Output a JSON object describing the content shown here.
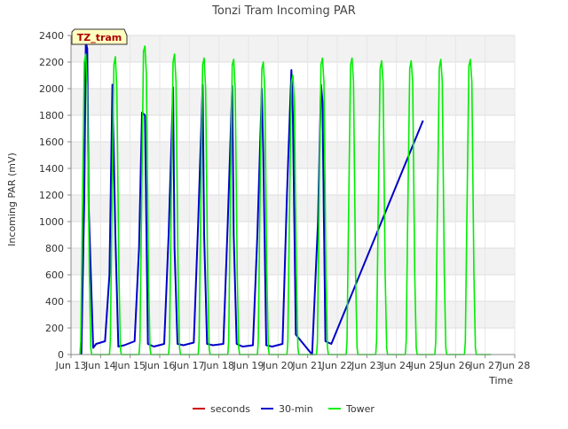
{
  "chart_data": {
    "type": "line",
    "title": "Tonzi Tram Incoming PAR",
    "xlabel": "Time",
    "ylabel": "Incoming PAR (mV)",
    "ylim": [
      0,
      2400
    ],
    "xlim": [
      13,
      28
    ],
    "yticks": [
      0,
      200,
      400,
      600,
      800,
      1000,
      1200,
      1400,
      1600,
      1800,
      2000,
      2200,
      2400
    ],
    "xticks": [
      {
        "v": 13,
        "label": "Jun 13"
      },
      {
        "v": 14,
        "label": "Jun 14"
      },
      {
        "v": 15,
        "label": "Jun 15"
      },
      {
        "v": 16,
        "label": "Jun 16"
      },
      {
        "v": 17,
        "label": "Jun 17"
      },
      {
        "v": 18,
        "label": "Jun 18"
      },
      {
        "v": 19,
        "label": "Jun 19"
      },
      {
        "v": 20,
        "label": "Jun 20"
      },
      {
        "v": 21,
        "label": "Jun 21"
      },
      {
        "v": 22,
        "label": "Jun 22"
      },
      {
        "v": 23,
        "label": "Jun 23"
      },
      {
        "v": 24,
        "label": "Jun 24"
      },
      {
        "v": 25,
        "label": "Jun 25"
      },
      {
        "v": 26,
        "label": "Jun 26"
      },
      {
        "v": 27,
        "label": "Jun 27"
      },
      {
        "v": 28,
        "label": "Jun 28"
      }
    ],
    "grid": true,
    "annotation": "TZ_tram",
    "legend_position": "bottom-center",
    "series": [
      {
        "name": "seconds",
        "color": "#cc0000",
        "x": [],
        "y": []
      },
      {
        "name": "30-min",
        "color": "#0000cc",
        "note": "daily peaks approx 2350, 2030, 1820, 2010, 2030, 2020, 2000, 2140, 2030; linear interpolation through data gaps",
        "x": [
          13.35,
          13.45,
          13.5,
          13.55,
          13.6,
          13.75,
          13.85,
          14.15,
          14.3,
          14.4,
          14.5,
          14.6,
          14.8,
          15.15,
          15.3,
          15.4,
          15.5,
          15.6,
          15.8,
          16.15,
          16.3,
          16.45,
          16.5,
          16.6,
          16.8,
          17.15,
          17.3,
          17.45,
          17.5,
          17.6,
          17.8,
          18.15,
          18.3,
          18.45,
          18.5,
          18.6,
          18.8,
          19.15,
          19.3,
          19.45,
          19.5,
          19.6,
          19.8,
          20.15,
          20.3,
          20.45,
          20.5,
          20.6,
          21.15,
          21.35,
          21.45,
          21.5,
          21.6,
          21.8,
          24.9
        ],
        "y": [
          0,
          1200,
          2350,
          2300,
          1100,
          50,
          80,
          100,
          600,
          2030,
          900,
          60,
          70,
          100,
          800,
          1820,
          1800,
          80,
          60,
          80,
          900,
          2010,
          800,
          80,
          70,
          90,
          1000,
          2030,
          900,
          80,
          70,
          80,
          1000,
          2020,
          900,
          80,
          60,
          70,
          900,
          2000,
          1500,
          70,
          60,
          80,
          1200,
          2140,
          1800,
          150,
          0,
          1000,
          2030,
          1900,
          100,
          80,
          1760
        ]
      },
      {
        "name": "Tower",
        "color": "#00ee00",
        "x": [
          13.3,
          13.33,
          13.38,
          13.45,
          13.5,
          13.55,
          13.62,
          13.67,
          13.7,
          14.3,
          14.33,
          14.38,
          14.45,
          14.5,
          14.55,
          14.62,
          14.67,
          14.7,
          15.3,
          15.33,
          15.38,
          15.45,
          15.5,
          15.55,
          15.62,
          15.67,
          15.7,
          16.3,
          16.33,
          16.38,
          16.45,
          16.5,
          16.55,
          16.62,
          16.67,
          16.7,
          17.3,
          17.33,
          17.38,
          17.45,
          17.5,
          17.55,
          17.62,
          17.67,
          17.7,
          18.3,
          18.33,
          18.38,
          18.45,
          18.5,
          18.55,
          18.62,
          18.67,
          18.7,
          19.3,
          19.33,
          19.38,
          19.45,
          19.5,
          19.55,
          19.62,
          19.67,
          19.7,
          20.3,
          20.33,
          20.38,
          20.45,
          20.5,
          20.55,
          20.62,
          20.67,
          20.7,
          21.3,
          21.33,
          21.38,
          21.45,
          21.5,
          21.55,
          21.62,
          21.67,
          21.7,
          22.3,
          22.33,
          22.38,
          22.45,
          22.5,
          22.55,
          22.62,
          22.67,
          22.7,
          23.3,
          23.33,
          23.38,
          23.45,
          23.5,
          23.55,
          23.62,
          23.67,
          23.7,
          24.3,
          24.33,
          24.38,
          24.45,
          24.5,
          24.55,
          24.62,
          24.67,
          24.7,
          25.3,
          25.33,
          25.38,
          25.45,
          25.5,
          25.55,
          25.62,
          25.67,
          25.7,
          26.3,
          26.33,
          26.38,
          26.45,
          26.5,
          26.55,
          26.62,
          26.67,
          26.7,
          27.2
        ],
        "y": [
          0,
          100,
          1000,
          2200,
          2260,
          2000,
          600,
          50,
          0,
          0,
          100,
          1000,
          2180,
          2240,
          2000,
          600,
          50,
          0,
          0,
          100,
          1000,
          2280,
          2320,
          2100,
          600,
          50,
          0,
          0,
          100,
          1000,
          2200,
          2260,
          2050,
          600,
          50,
          0,
          0,
          100,
          1000,
          2180,
          2230,
          2000,
          600,
          50,
          0,
          0,
          100,
          1000,
          2180,
          2220,
          2000,
          600,
          50,
          0,
          0,
          100,
          1000,
          2150,
          2200,
          2000,
          600,
          50,
          0,
          0,
          100,
          1000,
          2050,
          2100,
          1900,
          600,
          50,
          0,
          0,
          100,
          1000,
          2180,
          2230,
          2050,
          600,
          50,
          0,
          0,
          100,
          1000,
          2180,
          2230,
          2050,
          600,
          50,
          0,
          0,
          100,
          1000,
          2150,
          2210,
          2050,
          600,
          50,
          0,
          0,
          100,
          1000,
          2150,
          2210,
          2050,
          600,
          50,
          0,
          0,
          100,
          1000,
          2160,
          2220,
          2050,
          600,
          50,
          0,
          0,
          100,
          1000,
          2170,
          2220,
          2050,
          600,
          50,
          0,
          0
        ]
      }
    ]
  }
}
